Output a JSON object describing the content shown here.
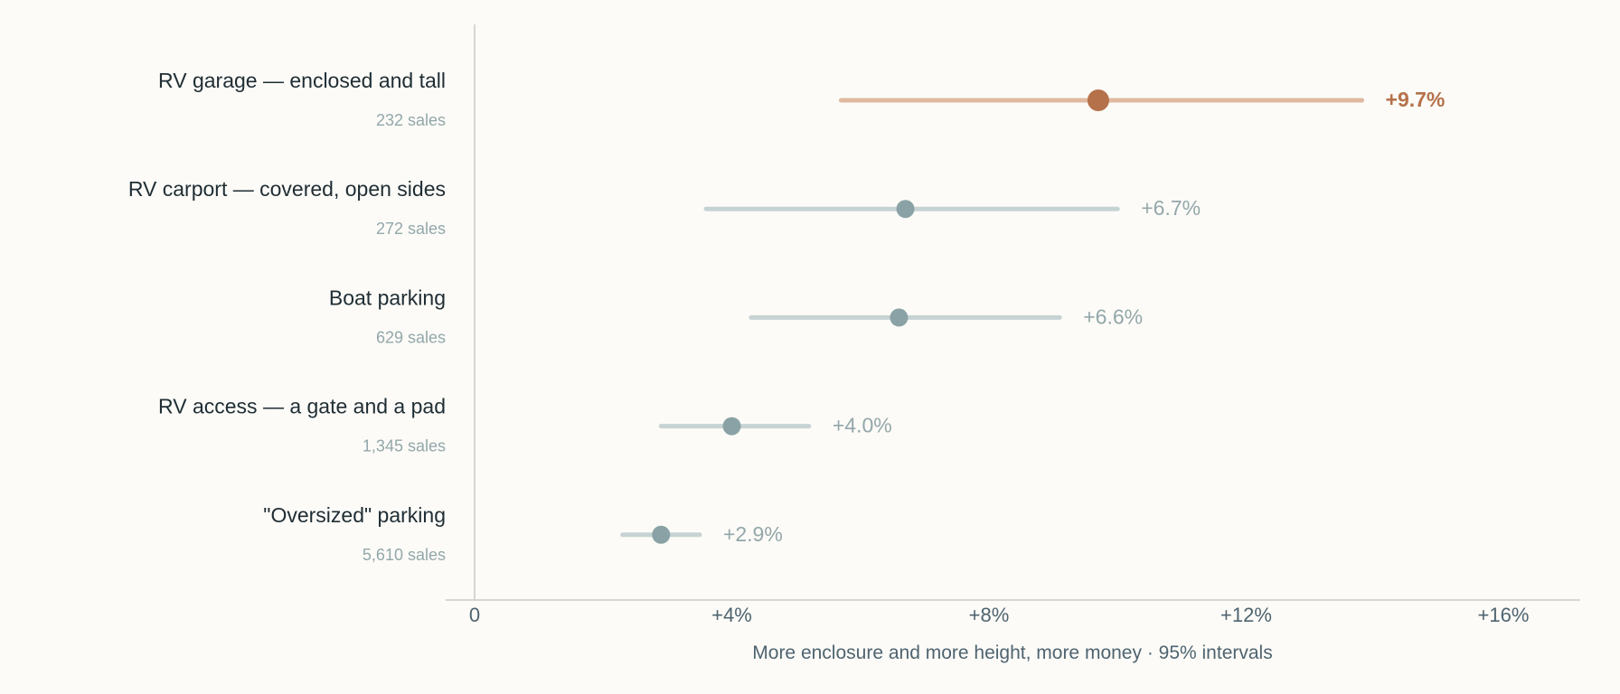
{
  "chart_data": {
    "type": "dot-interval",
    "title": "",
    "xlabel": "More enclosure and more height, more money · 95% intervals",
    "ylabel": "",
    "xlim": [
      -0.0045,
      0.172
    ],
    "x_ticks": [
      {
        "value": 0,
        "label": "0"
      },
      {
        "value": 0.04,
        "label": "+4%"
      },
      {
        "value": 0.08,
        "label": "+8%"
      },
      {
        "value": 0.12,
        "label": "+12%"
      },
      {
        "value": 0.16,
        "label": "+16%"
      }
    ],
    "grid": false,
    "highlight_color": "#b5714a",
    "highlight_interval_color": "#dfb9a0",
    "default_point_color": "#8aa2a5",
    "default_interval_color": "#c7d3d3",
    "label_color": "#1f2d34",
    "muted_color": "#93a7aa",
    "axis_color": "#c9c9c6",
    "axis_text_color": "#4e6470",
    "series": [
      {
        "name": "RV garage — enclosed and tall",
        "sales_label": "232 sales",
        "estimate": 0.097,
        "low": 0.057,
        "high": 0.138,
        "value_label": "+9.7%",
        "highlight": true
      },
      {
        "name": "RV carport — covered, open sides",
        "sales_label": "272 sales",
        "estimate": 0.067,
        "low": 0.036,
        "high": 0.1,
        "value_label": "+6.7%",
        "highlight": false
      },
      {
        "name": "Boat parking",
        "sales_label": "629 sales",
        "estimate": 0.066,
        "low": 0.043,
        "high": 0.091,
        "value_label": "+6.6%",
        "highlight": false
      },
      {
        "name": "RV access — a gate and a pad",
        "sales_label": "1,345 sales",
        "estimate": 0.04,
        "low": 0.029,
        "high": 0.052,
        "value_label": "+4.0%",
        "highlight": false
      },
      {
        "name": "\"Oversized\" parking",
        "sales_label": "5,610 sales",
        "estimate": 0.029,
        "low": 0.023,
        "high": 0.035,
        "value_label": "+2.9%",
        "highlight": false
      }
    ]
  }
}
